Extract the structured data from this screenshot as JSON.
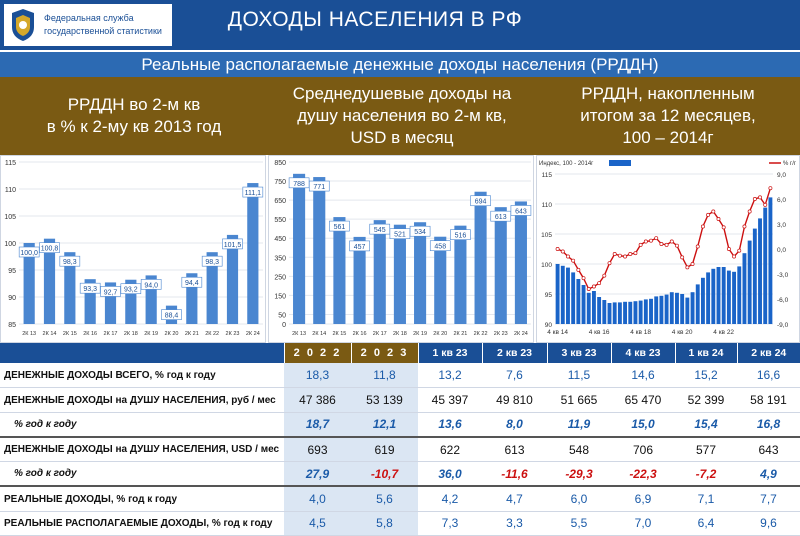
{
  "header": {
    "logo_line1": "Федеральная служба",
    "logo_line2": "государственной статистики",
    "title": "ДОХОДЫ НАСЕЛЕНИЯ В РФ"
  },
  "subtitle": "Реальные располагаемые денежные доходы населения (РРДДН)",
  "panels": {
    "left_title_1": "РРДДН во 2-м кв",
    "left_title_2": "в % к 2-му кв 2013 год",
    "mid_title_1": "Среднедушевые доходы на",
    "mid_title_2": "душу населения во 2-м кв,",
    "mid_title_3": "USD в месяц",
    "right_title_1": "РРДДН, накопленным",
    "right_title_2": "итогом за 12 месяцев,",
    "right_title_3": "100 – 2014г"
  },
  "colors": {
    "bar": "#4a86d0",
    "header": "#1a4f96",
    "gold": "#7a5a13",
    "line": "#cc1010",
    "negative": "#cc1010",
    "positive": "#1a5aa8"
  },
  "chart_data": [
    {
      "type": "bar",
      "title": "РРДДН во 2-м кв в % к 2-му кв 2013 год",
      "categories": [
        "2К 13",
        "2К 14",
        "2К 15",
        "2К 16",
        "2К 17",
        "2К 18",
        "2К 19",
        "2К 20",
        "2К 21",
        "2К 22",
        "2К 23",
        "2К 24"
      ],
      "values": [
        100.0,
        100.8,
        98.3,
        93.3,
        92.7,
        93.2,
        94.0,
        88.4,
        94.4,
        98.3,
        101.5,
        111.1
      ],
      "labels": [
        "100,0",
        "100,8",
        "98,3",
        "93,3",
        "92,7",
        "93,2",
        "94,0",
        "88,4",
        "94,4",
        "98,3",
        "101,5",
        "111,1"
      ],
      "ylim": [
        85,
        115
      ],
      "yticks": [
        "85",
        "90",
        "95",
        "100",
        "105",
        "110",
        "115"
      ]
    },
    {
      "type": "bar",
      "title": "Среднедушевые доходы на душу населения во 2-м кв, USD в месяц",
      "categories": [
        "2К 13",
        "2К 14",
        "2К 15",
        "2К 16",
        "2К 17",
        "2К 18",
        "2К 19",
        "2К 20",
        "2К 21",
        "2К 22",
        "2К 23",
        "2К 24"
      ],
      "values": [
        788,
        771,
        561,
        457,
        545,
        521,
        534,
        458,
        516,
        694,
        613,
        643
      ],
      "ylim": [
        0,
        850
      ],
      "yticks": [
        "0",
        "50",
        "150",
        "250",
        "350",
        "450",
        "550",
        "650",
        "750",
        "850"
      ]
    },
    {
      "type": "bar",
      "title": "РРДДН, накопленным итогом за 12 месяцев, 100 – 2014г",
      "legend": [
        "Индекс, 100 - 2014г",
        "% г/г"
      ],
      "legend_placement": "top",
      "ylim": [
        90,
        115
      ],
      "yticks": [
        "90",
        "95",
        "100",
        "105",
        "110",
        "115"
      ],
      "y2lim": [
        -9,
        9
      ],
      "y2ticks": [
        "-9,0",
        "-6,0",
        "-3,0",
        "0,0",
        "3,0",
        "6,0",
        "9,0"
      ],
      "xticks": [
        "4 кв 14",
        "4 кв 16",
        "4 кв 18",
        "4 кв 20",
        "4 кв 22"
      ],
      "index": [
        100,
        99.7,
        99.4,
        98.6,
        97.5,
        96.5,
        95.2,
        95.5,
        94.5,
        94.0,
        93.5,
        93.6,
        93.6,
        93.7,
        93.7,
        93.8,
        93.9,
        94.1,
        94.2,
        94.6,
        94.7,
        94.9,
        95.3,
        95.2,
        95.0,
        94.4,
        95.3,
        96.6,
        97.7,
        98.6,
        99.2,
        99.5,
        99.5,
        98.9,
        98.7,
        99.6,
        101.8,
        103.9,
        105.9,
        107.6,
        109.4,
        111.1
      ],
      "pct": [
        0.0,
        -0.3,
        -0.9,
        -1.4,
        -2.5,
        -3.5,
        -4.8,
        -4.5,
        -4.1,
        -3.2,
        -1.7,
        -0.6,
        -0.8,
        -0.9,
        -0.6,
        -0.5,
        0.5,
        0.9,
        1.0,
        1.3,
        0.6,
        0.5,
        0.9,
        0.4,
        -1.0,
        -2.2,
        -1.8,
        0.3,
        2.7,
        4.1,
        4.5,
        3.6,
        2.6,
        0.0,
        -0.9,
        -0.2,
        2.7,
        4.5,
        6.0,
        6.2,
        5.3,
        7.3
      ]
    }
  ],
  "table": {
    "headers": [
      "2 0 2 2",
      "2 0 2 3",
      "1 кв 23",
      "2 кв 23",
      "3 кв 23",
      "4 кв 23",
      "1 кв 24",
      "2 кв 24"
    ],
    "rows": [
      {
        "label": "ДЕНЕЖНЫЕ ДОХОДЫ ВСЕГО, % год к году",
        "values": [
          "18,3",
          "11,8",
          "13,2",
          "7,6",
          "11,5",
          "14,6",
          "15,2",
          "16,6"
        ]
      },
      {
        "label": "ДЕНЕЖНЫЕ ДОХОДЫ на ДУШУ НАСЕЛЕНИЯ, руб / мес",
        "values": [
          "47 386",
          "53 139",
          "45 397",
          "49 810",
          "51 665",
          "65 470",
          "52 399",
          "58 191"
        ]
      },
      {
        "label": "% год к году",
        "values": [
          "18,7",
          "12,1",
          "13,6",
          "8,0",
          "11,9",
          "15,0",
          "15,4",
          "16,8"
        ]
      },
      {
        "label": "ДЕНЕЖНЫЕ ДОХОДЫ на ДУШУ НАСЕЛЕНИЯ, USD / мес",
        "values": [
          "693",
          "619",
          "622",
          "613",
          "548",
          "706",
          "577",
          "643"
        ]
      },
      {
        "label": "% год к году",
        "values": [
          "27,9",
          "-10,7",
          "36,0",
          "-11,6",
          "-29,3",
          "-22,3",
          "-7,2",
          "4,9"
        ]
      },
      {
        "label": "РЕАЛЬНЫЕ ДОХОДЫ, % год к году",
        "values": [
          "4,0",
          "5,6",
          "4,2",
          "4,7",
          "6,0",
          "6,9",
          "7,1",
          "7,7"
        ]
      },
      {
        "label": "РЕАЛЬНЫЕ РАСПОЛАГАЕМЫЕ ДОХОДЫ, % год к году",
        "values": [
          "4,5",
          "5,8",
          "7,3",
          "3,3",
          "5,5",
          "7,0",
          "6,4",
          "9,6"
        ]
      }
    ]
  }
}
